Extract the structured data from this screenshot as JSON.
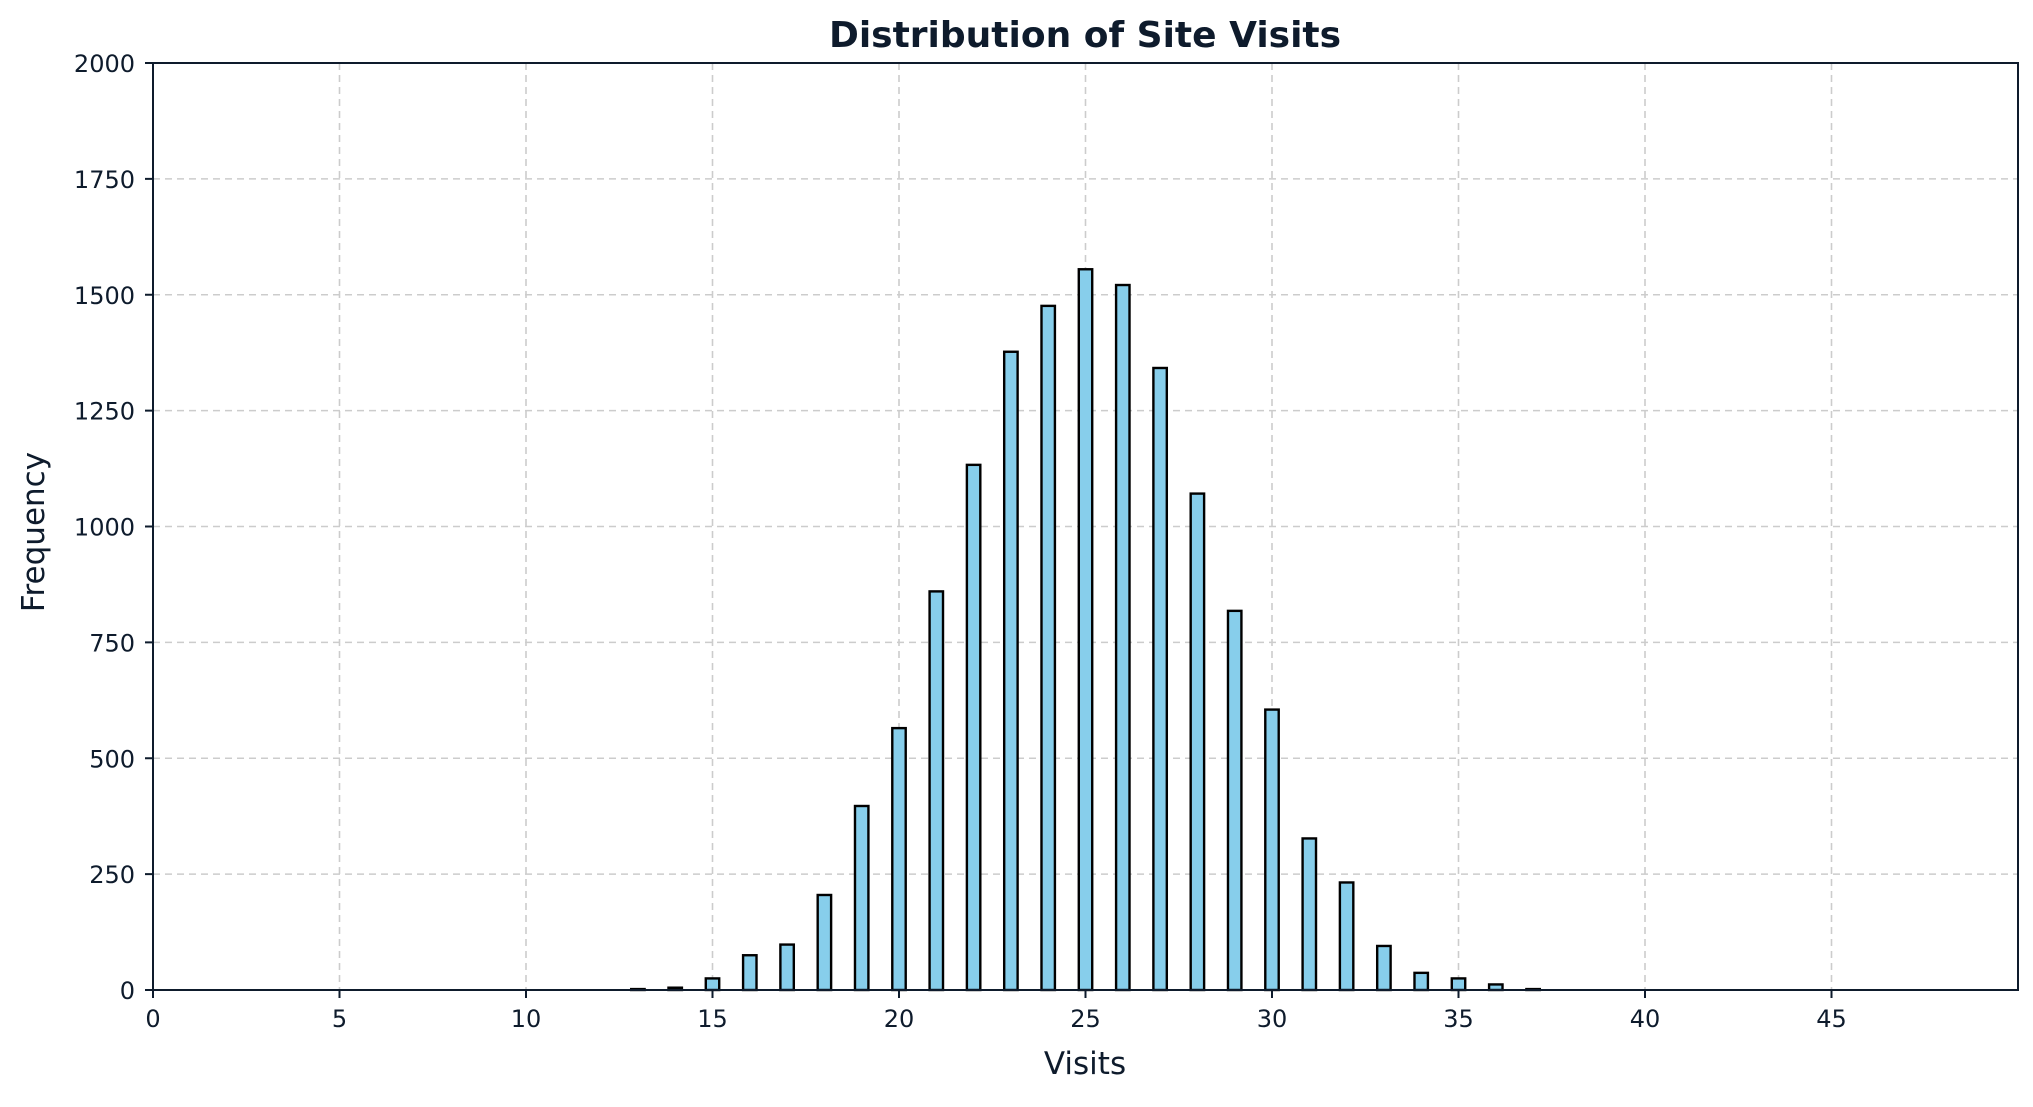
{
  "chart_data": {
    "type": "bar",
    "title": "Distribution of Site Visits",
    "xlabel": "Visits",
    "ylabel": "Frequency",
    "xlim": [
      0,
      50
    ],
    "ylim": [
      0,
      2000
    ],
    "x_ticks": [
      0,
      5,
      10,
      15,
      20,
      25,
      30,
      35,
      40,
      45
    ],
    "y_ticks": [
      0,
      250,
      500,
      750,
      1000,
      1250,
      1500,
      1750,
      2000
    ],
    "grid": true,
    "grid_style": "dashed",
    "bar_color": "#87ceeb",
    "edge_color": "#000000",
    "x": [
      13,
      14,
      15,
      16,
      17,
      18,
      19,
      20,
      21,
      22,
      23,
      24,
      25,
      26,
      27,
      28,
      29,
      30,
      31,
      32,
      33,
      34,
      35,
      36,
      37
    ],
    "values": [
      2,
      5,
      25,
      75,
      98,
      205,
      397,
      565,
      860,
      1133,
      1377,
      1476,
      1555,
      1521,
      1342,
      1071,
      818,
      605,
      327,
      232,
      95,
      37,
      25,
      12,
      2
    ]
  }
}
